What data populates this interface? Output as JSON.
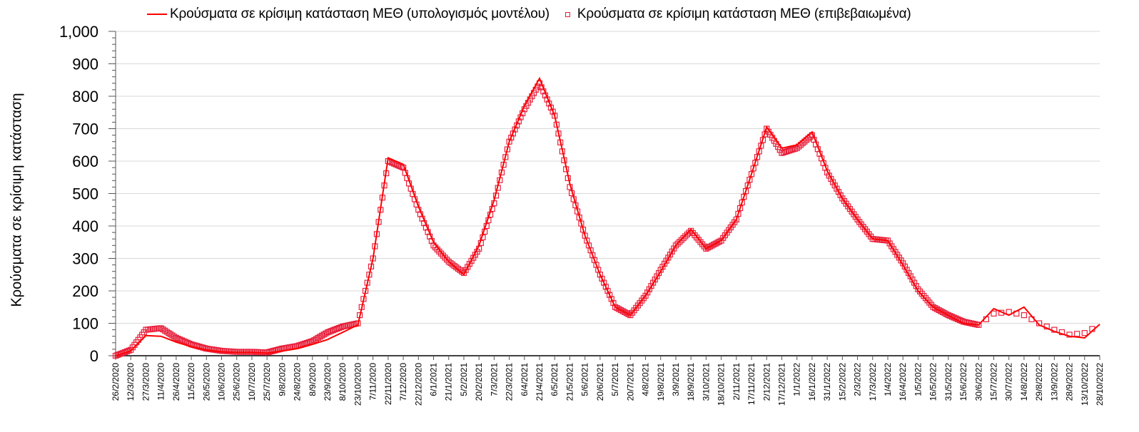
{
  "legend": {
    "model_label": "Κρούσματα σε κρίσιμη κατάσταση ΜΕΘ (υπολογισμός μοντέλου)",
    "confirmed_label": "Κρούσματα σε κρίσιμη κατάσταση ΜΕΘ (επιβεβαιωμένα)"
  },
  "axis": {
    "ylabel": "Κρούσματα σε κρίσιμη κατάσταση",
    "y_ticks": [
      "0",
      "100",
      "200",
      "300",
      "400",
      "500",
      "600",
      "700",
      "800",
      "900",
      "1,000"
    ]
  },
  "colors": {
    "model_line": "#ff0000",
    "confirmed_marker": "#e8203c",
    "gridline": "#d9d9d9",
    "axis": "#555555"
  },
  "chart_data": {
    "type": "line",
    "title": "",
    "xlabel": "",
    "ylabel": "Κρούσματα σε κρίσιμη κατάσταση",
    "ylim": [
      0,
      1000
    ],
    "grid": true,
    "legend_position": "top",
    "categories": [
      "26/2/2020",
      "12/3/2020",
      "27/3/2020",
      "11/4/2020",
      "26/4/2020",
      "11/5/2020",
      "26/5/2020",
      "10/6/2020",
      "25/6/2020",
      "10/7/2020",
      "25/7/2020",
      "9/8/2020",
      "24/8/2020",
      "8/9/2020",
      "23/9/2020",
      "8/10/2020",
      "23/10/2020",
      "7/11/2020",
      "22/11/2020",
      "7/12/2020",
      "22/12/2020",
      "6/1/2021",
      "21/1/2021",
      "5/2/2021",
      "20/2/2021",
      "7/3/2021",
      "22/3/2021",
      "6/4/2021",
      "21/4/2021",
      "6/5/2021",
      "21/5/2021",
      "5/6/2021",
      "20/6/2021",
      "5/7/2021",
      "20/7/2021",
      "4/8/2021",
      "19/8/2021",
      "3/9/2021",
      "18/9/2021",
      "3/10/2021",
      "18/10/2021",
      "2/11/2021",
      "17/11/2021",
      "2/12/2021",
      "17/12/2021",
      "1/1/2022",
      "16/1/2022",
      "31/1/2022",
      "15/2/2022",
      "2/3/2022",
      "17/3/2022",
      "1/4/2022",
      "16/4/2022",
      "1/5/2022",
      "16/5/2022",
      "31/5/2022",
      "15/6/2022",
      "30/6/2022",
      "15/7/2022",
      "30/7/2022",
      "14/8/2022",
      "29/8/2022",
      "13/9/2022",
      "28/9/2022",
      "13/10/2022",
      "28/10/2022"
    ],
    "series": [
      {
        "name": "Κρούσματα σε κρίσιμη κατάσταση ΜΕΘ (υπολογισμός μοντέλου)",
        "style": "line",
        "values": [
          0,
          15,
          62,
          60,
          42,
          28,
          18,
          12,
          10,
          10,
          8,
          15,
          22,
          35,
          50,
          72,
          95,
          300,
          610,
          590,
          460,
          350,
          290,
          250,
          340,
          480,
          660,
          770,
          855,
          740,
          530,
          370,
          250,
          150,
          125,
          185,
          260,
          340,
          390,
          330,
          355,
          420,
          560,
          705,
          640,
          650,
          690,
          570,
          485,
          420,
          360,
          355,
          280,
          200,
          150,
          125,
          100,
          95,
          145,
          125,
          150,
          95,
          75,
          60,
          55,
          97
        ]
      },
      {
        "name": "Κρούσματα σε κρίσιμη κατάσταση ΜΕΘ (επιβεβαιωμένα)",
        "style": "square-markers",
        "values": [
          0,
          18,
          80,
          85,
          55,
          35,
          22,
          15,
          12,
          12,
          10,
          22,
          30,
          45,
          72,
          90,
          100,
          300,
          600,
          580,
          450,
          340,
          290,
          255,
          330,
          470,
          660,
          760,
          840,
          740,
          520,
          370,
          250,
          150,
          125,
          185,
          265,
          340,
          385,
          330,
          355,
          420,
          560,
          700,
          625,
          640,
          680,
          565,
          485,
          420,
          360,
          355,
          285,
          205,
          150,
          125,
          105,
          95,
          130,
          135,
          125,
          100,
          80,
          65,
          70,
          95
        ]
      }
    ]
  }
}
